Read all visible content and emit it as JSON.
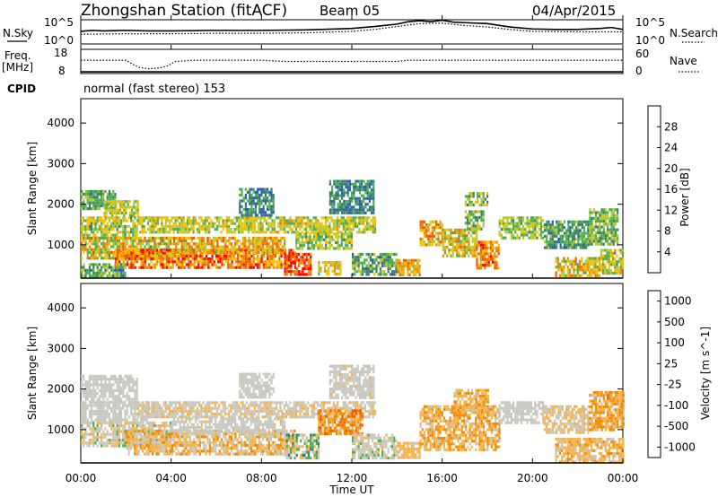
{
  "header": {
    "station": "Zhongshan Station (fitACF)",
    "beam": "Beam 05",
    "date": "04/Apr/2015"
  },
  "noise_panel": {
    "left_label": "N.Sky",
    "right_label": "N.Search",
    "ticks": [
      "10^5",
      "10^0"
    ],
    "range_log10": [
      0,
      5
    ],
    "sky_trace": [
      [
        0,
        2.6
      ],
      [
        0.5,
        2.8
      ],
      [
        1,
        2.7
      ],
      [
        2,
        2.8
      ],
      [
        3,
        2.7
      ],
      [
        4,
        2.7
      ],
      [
        6,
        2.8
      ],
      [
        8,
        2.8
      ],
      [
        10,
        2.9
      ],
      [
        12,
        3.2
      ],
      [
        13,
        3.6
      ],
      [
        14,
        4.1
      ],
      [
        14.5,
        4.6
      ],
      [
        15,
        4.8
      ],
      [
        15.5,
        4.6
      ],
      [
        16,
        4.9
      ],
      [
        16.5,
        4.5
      ],
      [
        17,
        4.4
      ],
      [
        18,
        4.2
      ],
      [
        19,
        3.5
      ],
      [
        20,
        3.1
      ],
      [
        21,
        3.0
      ],
      [
        22,
        3.0
      ],
      [
        23,
        3.2
      ],
      [
        23.5,
        3.4
      ],
      [
        24,
        3.0
      ]
    ],
    "search_trace": [
      [
        0,
        2.0
      ],
      [
        2,
        2.1
      ],
      [
        4,
        2.1
      ],
      [
        6,
        2.2
      ],
      [
        8,
        2.2
      ],
      [
        10,
        2.3
      ],
      [
        12,
        2.6
      ],
      [
        13,
        3.0
      ],
      [
        14,
        3.6
      ],
      [
        15,
        4.2
      ],
      [
        16,
        4.3
      ],
      [
        17,
        3.8
      ],
      [
        18,
        3.5
      ],
      [
        19,
        3.0
      ],
      [
        20,
        2.6
      ],
      [
        22,
        2.5
      ],
      [
        24,
        2.5
      ]
    ]
  },
  "freq_panel": {
    "left_label": "Freq.",
    "left_unit": "[MHz]",
    "left_ticks": [
      "18",
      "8"
    ],
    "left_range": [
      8,
      18
    ],
    "right_label": "Nave",
    "right_ticks": [
      "60",
      "0"
    ],
    "right_range": [
      0,
      60
    ],
    "freq_level_mhz": 8.7,
    "nave_trace": [
      [
        0,
        33
      ],
      [
        2,
        33
      ],
      [
        2.3,
        23
      ],
      [
        2.6,
        15
      ],
      [
        3.0,
        12
      ],
      [
        3.5,
        14
      ],
      [
        3.8,
        18
      ],
      [
        4.2,
        30
      ],
      [
        5,
        33
      ],
      [
        6,
        33
      ],
      [
        7,
        33
      ],
      [
        8,
        33
      ],
      [
        9,
        30
      ],
      [
        10,
        30
      ],
      [
        11,
        30
      ],
      [
        12,
        30
      ],
      [
        13,
        30
      ],
      [
        14,
        30
      ],
      [
        14.5,
        33
      ],
      [
        16,
        33
      ],
      [
        18,
        33
      ],
      [
        20,
        33
      ],
      [
        22,
        33
      ],
      [
        24,
        33
      ]
    ]
  },
  "cpid": {
    "label": "CPID",
    "value": "normal (fast stereo) 153"
  },
  "x_axis": {
    "ticks": [
      "00:00",
      "04:00",
      "08:00",
      "12:00",
      "16:00",
      "20:00",
      "00:00"
    ],
    "tick_hours": [
      0,
      4,
      8,
      12,
      16,
      20,
      24
    ],
    "label": "Time UT"
  },
  "chart_data": [
    {
      "type": "heatmap",
      "quantity": "Power",
      "ylabel": "Slant Range [km]",
      "yticks": [
        1000,
        2000,
        3000,
        4000
      ],
      "ylim": [
        180,
        4600
      ],
      "xlim_hours": [
        0,
        24
      ],
      "colorbar_label": "Power [dB]",
      "colorbar_ticks": [
        "4",
        "8",
        "12",
        "16",
        "20",
        "24",
        "28"
      ],
      "colorbar_range": [
        0,
        32
      ],
      "colors": [
        "#0000ff",
        "#2a5cb0",
        "#3b7f6a",
        "#4caf50",
        "#b7c932",
        "#f4c000",
        "#f28a00",
        "#f05a00",
        "#ff0000"
      ],
      "regions": [
        {
          "t": [
            0.0,
            1.5
          ],
          "r": [
            1900,
            2350
          ],
          "v": [
            8,
            16
          ]
        },
        {
          "t": [
            1.0,
            2.5
          ],
          "r": [
            1700,
            2100
          ],
          "v": [
            12,
            22
          ]
        },
        {
          "t": [
            0.0,
            2.5
          ],
          "r": [
            1200,
            1700
          ],
          "v": [
            10,
            22
          ]
        },
        {
          "t": [
            2.5,
            13.0
          ],
          "r": [
            1300,
            1700
          ],
          "v": [
            12,
            22
          ]
        },
        {
          "t": [
            0.0,
            4.0
          ],
          "r": [
            700,
            1200
          ],
          "v": [
            10,
            26
          ]
        },
        {
          "t": [
            1.5,
            9.5
          ],
          "r": [
            450,
            900
          ],
          "v": [
            18,
            32
          ]
        },
        {
          "t": [
            4.0,
            9.0
          ],
          "r": [
            800,
            1200
          ],
          "v": [
            14,
            28
          ]
        },
        {
          "t": [
            9.0,
            10.2
          ],
          "r": [
            300,
            800
          ],
          "v": [
            22,
            32
          ]
        },
        {
          "t": [
            0.0,
            2.0
          ],
          "r": [
            250,
            550
          ],
          "v": [
            6,
            18
          ]
        },
        {
          "t": [
            9.5,
            12.0
          ],
          "r": [
            900,
            1300
          ],
          "v": [
            10,
            20
          ]
        },
        {
          "t": [
            10.5,
            11.5
          ],
          "r": [
            300,
            600
          ],
          "v": [
            14,
            24
          ]
        },
        {
          "t": [
            12.0,
            14.0
          ],
          "r": [
            300,
            800
          ],
          "v": [
            6,
            18
          ]
        },
        {
          "t": [
            14.0,
            15.0
          ],
          "r": [
            250,
            650
          ],
          "v": [
            14,
            26
          ]
        },
        {
          "t": [
            15.0,
            16.0
          ],
          "r": [
            1000,
            1600
          ],
          "v": [
            16,
            28
          ]
        },
        {
          "t": [
            16.0,
            17.5
          ],
          "r": [
            700,
            1400
          ],
          "v": [
            12,
            26
          ]
        },
        {
          "t": [
            17.5,
            18.5
          ],
          "r": [
            400,
            1100
          ],
          "v": [
            18,
            30
          ]
        },
        {
          "t": [
            17.0,
            17.8
          ],
          "r": [
            1400,
            1850
          ],
          "v": [
            8,
            20
          ]
        },
        {
          "t": [
            18.5,
            20.5
          ],
          "r": [
            1200,
            1700
          ],
          "v": [
            10,
            20
          ]
        },
        {
          "t": [
            20.5,
            22.5
          ],
          "r": [
            900,
            1600
          ],
          "v": [
            6,
            16
          ]
        },
        {
          "t": [
            22.5,
            23.8
          ],
          "r": [
            1000,
            1900
          ],
          "v": [
            8,
            18
          ]
        },
        {
          "t": [
            21.0,
            23.0
          ],
          "r": [
            220,
            700
          ],
          "v": [
            12,
            26
          ]
        },
        {
          "t": [
            23.0,
            24.0
          ],
          "r": [
            300,
            900
          ],
          "v": [
            10,
            22
          ]
        },
        {
          "t": [
            7.0,
            8.5
          ],
          "r": [
            1700,
            2400
          ],
          "v": [
            4,
            14
          ]
        },
        {
          "t": [
            11.0,
            13.0
          ],
          "r": [
            1800,
            2600
          ],
          "v": [
            4,
            14
          ]
        },
        {
          "t": [
            17.0,
            18.0
          ],
          "r": [
            2000,
            2300
          ],
          "v": [
            8,
            20
          ]
        }
      ]
    },
    {
      "type": "heatmap",
      "quantity": "Velocity",
      "ylabel": "Slant Range [km]",
      "yticks": [
        1000,
        2000,
        3000,
        4000
      ],
      "ylim": [
        180,
        4600
      ],
      "xlim_hours": [
        0,
        24
      ],
      "colorbar_label": "Velocity [m s^-1]",
      "colorbar_ticks": [
        "1000",
        "500",
        "100",
        "25",
        "-25",
        "-100",
        "-500",
        "-1000"
      ],
      "colorbar_range": [
        -1250,
        1250
      ],
      "colors": [
        "#ff0000",
        "#f05a00",
        "#f28a00",
        "#f5b24a",
        "#c8c8c0",
        "#4caf50",
        "#3b7f6a",
        "#2a5cb0",
        "#0000ff"
      ],
      "regions": [
        {
          "t": [
            0.0,
            2.5
          ],
          "r": [
            1700,
            2350
          ],
          "v": [
            -20,
            20
          ]
        },
        {
          "t": [
            0.0,
            3.0
          ],
          "r": [
            1200,
            1700
          ],
          "v": [
            -60,
            30
          ]
        },
        {
          "t": [
            2.5,
            13.0
          ],
          "r": [
            1300,
            1700
          ],
          "v": [
            -200,
            20
          ]
        },
        {
          "t": [
            0.0,
            4.0
          ],
          "r": [
            600,
            1200
          ],
          "v": [
            -300,
            200
          ]
        },
        {
          "t": [
            2.0,
            9.5
          ],
          "r": [
            400,
            1000
          ],
          "v": [
            -600,
            100
          ]
        },
        {
          "t": [
            4.0,
            9.0
          ],
          "r": [
            900,
            1300
          ],
          "v": [
            -150,
            100
          ]
        },
        {
          "t": [
            9.0,
            10.5
          ],
          "r": [
            300,
            900
          ],
          "v": [
            -400,
            600
          ]
        },
        {
          "t": [
            10.5,
            12.5
          ],
          "r": [
            900,
            1500
          ],
          "v": [
            -900,
            -100
          ]
        },
        {
          "t": [
            12.0,
            14.0
          ],
          "r": [
            300,
            900
          ],
          "v": [
            -200,
            200
          ]
        },
        {
          "t": [
            14.0,
            15.0
          ],
          "r": [
            300,
            700
          ],
          "v": [
            -400,
            -60
          ]
        },
        {
          "t": [
            15.0,
            18.5
          ],
          "r": [
            500,
            1600
          ],
          "v": [
            -600,
            -80
          ]
        },
        {
          "t": [
            16.5,
            18.0
          ],
          "r": [
            1500,
            2000
          ],
          "v": [
            -500,
            -60
          ]
        },
        {
          "t": [
            18.5,
            20.5
          ],
          "r": [
            1200,
            1700
          ],
          "v": [
            -30,
            30
          ]
        },
        {
          "t": [
            20.5,
            22.5
          ],
          "r": [
            900,
            1600
          ],
          "v": [
            -300,
            20
          ]
        },
        {
          "t": [
            22.5,
            24.0
          ],
          "r": [
            1000,
            1950
          ],
          "v": [
            -700,
            -80
          ]
        },
        {
          "t": [
            21.0,
            24.0
          ],
          "r": [
            220,
            800
          ],
          "v": [
            -500,
            -50
          ]
        },
        {
          "t": [
            7.0,
            8.5
          ],
          "r": [
            1800,
            2400
          ],
          "v": [
            -100,
            100
          ]
        },
        {
          "t": [
            11.0,
            13.0
          ],
          "r": [
            1800,
            2600
          ],
          "v": [
            -150,
            100
          ]
        }
      ]
    }
  ]
}
